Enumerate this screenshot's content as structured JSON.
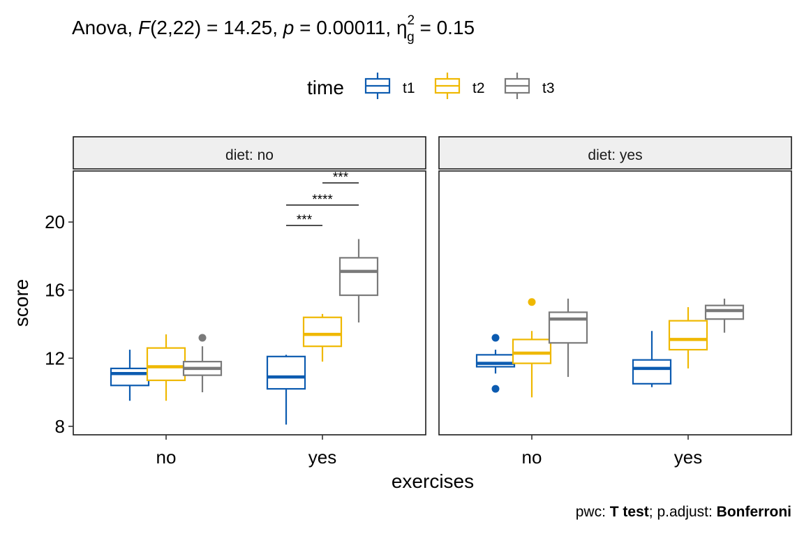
{
  "title": {
    "prefix": "Anova, ",
    "stat_name": "F",
    "df": "(2,22)",
    "stat_eq": " = 14.25, ",
    "p_name": "p",
    "p_eq": " = 0.00011, ",
    "eta_symbol": "η",
    "eta_sup": "2",
    "eta_sub": "g",
    "eta_eq": " = 0.15"
  },
  "caption": {
    "pwc_label": "pwc: ",
    "pwc_method": "T test",
    "sep": "; p.adjust: ",
    "adjust_method": "Bonferroni"
  },
  "colors": {
    "t1": "#0C5BB0",
    "t2": "#EFB800",
    "t3": "#7A7A7A",
    "strip_fill": "#EFEFEF",
    "panel_border": "#1A1A1A"
  },
  "chart_data": {
    "type": "boxplot",
    "xlabel": "exercises",
    "ylabel": "score",
    "ylim": [
      7.5,
      23
    ],
    "yticks": [
      8,
      12,
      16,
      20
    ],
    "categories": [
      "no",
      "yes"
    ],
    "legend": {
      "title": "time",
      "position": "top",
      "entries": [
        "t1",
        "t2",
        "t3"
      ]
    },
    "grid": false,
    "facets": [
      {
        "label": "diet: no",
        "groups": [
          {
            "exercises": "no",
            "time": "t1",
            "min": 9.5,
            "q1": 10.4,
            "median": 11.1,
            "q3": 11.4,
            "max": 12.5,
            "outliers": []
          },
          {
            "exercises": "no",
            "time": "t2",
            "min": 9.5,
            "q1": 10.7,
            "median": 11.5,
            "q3": 12.6,
            "max": 13.4,
            "outliers": []
          },
          {
            "exercises": "no",
            "time": "t3",
            "min": 10.0,
            "q1": 11.0,
            "median": 11.4,
            "q3": 11.8,
            "max": 12.7,
            "outliers": [
              13.2
            ]
          },
          {
            "exercises": "yes",
            "time": "t1",
            "min": 8.1,
            "q1": 10.2,
            "median": 10.9,
            "q3": 12.1,
            "max": 12.2,
            "outliers": []
          },
          {
            "exercises": "yes",
            "time": "t2",
            "min": 11.8,
            "q1": 12.7,
            "median": 13.4,
            "q3": 14.4,
            "max": 14.6,
            "outliers": []
          },
          {
            "exercises": "yes",
            "time": "t3",
            "min": 14.1,
            "q1": 15.7,
            "median": 17.1,
            "q3": 17.9,
            "max": 19.0,
            "outliers": []
          }
        ],
        "comparisons": [
          {
            "exercises": "yes",
            "from": "t1",
            "to": "t2",
            "y": 19.8,
            "label": "***"
          },
          {
            "exercises": "yes",
            "from": "t1",
            "to": "t3",
            "y": 21.0,
            "label": "****"
          },
          {
            "exercises": "yes",
            "from": "t2",
            "to": "t3",
            "y": 22.3,
            "label": "***"
          }
        ]
      },
      {
        "label": "diet: yes",
        "groups": [
          {
            "exercises": "no",
            "time": "t1",
            "min": 11.1,
            "q1": 11.5,
            "median": 11.7,
            "q3": 12.2,
            "max": 12.5,
            "outliers": [
              13.2,
              10.2
            ]
          },
          {
            "exercises": "no",
            "time": "t2",
            "min": 9.7,
            "q1": 11.7,
            "median": 12.3,
            "q3": 13.1,
            "max": 13.6,
            "outliers": [
              15.3
            ]
          },
          {
            "exercises": "no",
            "time": "t3",
            "min": 10.9,
            "q1": 12.9,
            "median": 14.3,
            "q3": 14.7,
            "max": 15.5,
            "outliers": []
          },
          {
            "exercises": "yes",
            "time": "t1",
            "min": 10.3,
            "q1": 10.5,
            "median": 11.4,
            "q3": 11.9,
            "max": 13.6,
            "outliers": []
          },
          {
            "exercises": "yes",
            "time": "t2",
            "min": 11.4,
            "q1": 12.5,
            "median": 13.1,
            "q3": 14.2,
            "max": 15.0,
            "outliers": []
          },
          {
            "exercises": "yes",
            "time": "t3",
            "min": 13.5,
            "q1": 14.3,
            "median": 14.8,
            "q3": 15.1,
            "max": 15.5,
            "outliers": []
          }
        ],
        "comparisons": []
      }
    ]
  }
}
